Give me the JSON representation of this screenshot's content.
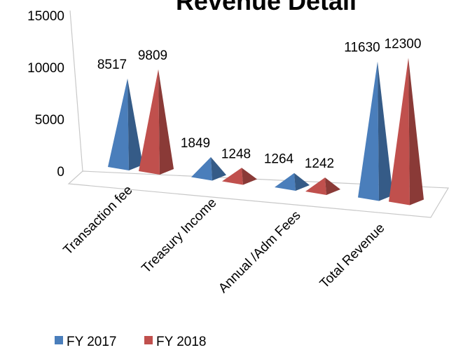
{
  "chart_data": {
    "type": "pyramid3d",
    "title": "Revenue Detail",
    "categories": [
      "Transaction fee",
      "Treasury Income",
      "Annual /Adm Fees",
      "Total Revenue"
    ],
    "series": [
      {
        "name": "FY 2017",
        "color": "#4a7ebb",
        "values": [
          8517,
          1849,
          1264,
          11630
        ]
      },
      {
        "name": "FY 2018",
        "color": "#c0504d",
        "values": [
          9809,
          1248,
          1242,
          12300
        ]
      }
    ],
    "ylim": [
      0,
      15000
    ],
    "yticks": [
      0,
      5000,
      10000,
      15000
    ],
    "legend": "bottom"
  }
}
